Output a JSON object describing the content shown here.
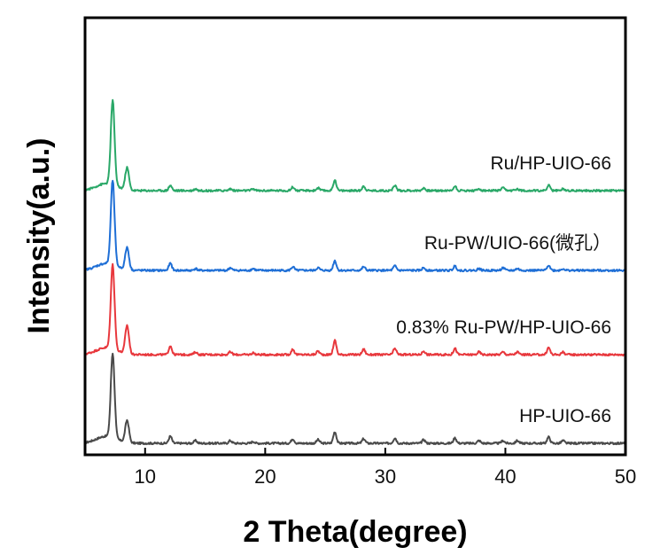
{
  "chart_data": {
    "type": "line",
    "xlabel": "2 Theta(degree)",
    "ylabel": "Intensity(a.u.)",
    "xlim": [
      5,
      50
    ],
    "x_ticks": [
      10,
      20,
      30,
      40,
      50
    ],
    "y_ticks_shown": false,
    "grid": false,
    "legend": "labels placed above each trace on the right",
    "series": [
      {
        "name": "HP-UIO-66",
        "color": "#4a4a4a",
        "offset": 0,
        "peaks": [
          [
            7.3,
            95
          ],
          [
            8.5,
            25
          ],
          [
            12.1,
            8
          ],
          [
            14.2,
            3
          ],
          [
            17.1,
            3
          ],
          [
            19.0,
            2
          ],
          [
            22.3,
            5
          ],
          [
            24.4,
            4
          ],
          [
            25.8,
            13
          ],
          [
            28.2,
            5
          ],
          [
            30.8,
            6
          ],
          [
            33.2,
            4
          ],
          [
            35.8,
            6
          ],
          [
            37.8,
            3
          ],
          [
            39.8,
            3
          ],
          [
            41.0,
            3
          ],
          [
            43.6,
            7
          ],
          [
            44.8,
            3
          ]
        ]
      },
      {
        "name": "0.83% Ru-PW/HP-UIO-66",
        "color": "#e8383d",
        "offset": 100,
        "peaks": [
          [
            7.3,
            95
          ],
          [
            8.5,
            32
          ],
          [
            12.1,
            10
          ],
          [
            14.2,
            3
          ],
          [
            17.1,
            3
          ],
          [
            19.0,
            2
          ],
          [
            22.3,
            6
          ],
          [
            24.4,
            4
          ],
          [
            25.8,
            16
          ],
          [
            28.2,
            6
          ],
          [
            30.8,
            7
          ],
          [
            33.2,
            4
          ],
          [
            35.8,
            7
          ],
          [
            37.8,
            3
          ],
          [
            39.8,
            3
          ],
          [
            41.0,
            3
          ],
          [
            43.6,
            8
          ],
          [
            44.8,
            3
          ]
        ]
      },
      {
        "name": "Ru-PW/UIO-66(微孔）",
        "color": "#1f6fd6",
        "offset": 195,
        "peaks": [
          [
            7.3,
            95
          ],
          [
            8.5,
            25
          ],
          [
            12.1,
            8
          ],
          [
            14.2,
            2
          ],
          [
            17.1,
            3
          ],
          [
            19.0,
            2
          ],
          [
            22.3,
            4
          ],
          [
            24.4,
            3
          ],
          [
            25.8,
            11
          ],
          [
            28.2,
            4
          ],
          [
            30.8,
            5
          ],
          [
            33.2,
            3
          ],
          [
            35.8,
            5
          ],
          [
            37.8,
            2
          ],
          [
            39.8,
            3
          ],
          [
            41.0,
            2
          ],
          [
            43.6,
            6
          ],
          [
            44.8,
            2
          ]
        ]
      },
      {
        "name": "Ru/HP-UIO-66",
        "color": "#2aa868",
        "offset": 285,
        "peaks": [
          [
            7.3,
            95
          ],
          [
            8.5,
            25
          ],
          [
            12.1,
            6
          ],
          [
            14.2,
            2
          ],
          [
            17.1,
            2
          ],
          [
            19.0,
            2
          ],
          [
            22.3,
            4
          ],
          [
            24.4,
            3
          ],
          [
            25.8,
            12
          ],
          [
            28.2,
            5
          ],
          [
            30.8,
            6
          ],
          [
            33.2,
            3
          ],
          [
            35.8,
            5
          ],
          [
            37.8,
            2
          ],
          [
            39.8,
            3
          ],
          [
            41.0,
            2
          ],
          [
            43.6,
            6
          ],
          [
            44.8,
            2
          ]
        ]
      }
    ]
  }
}
